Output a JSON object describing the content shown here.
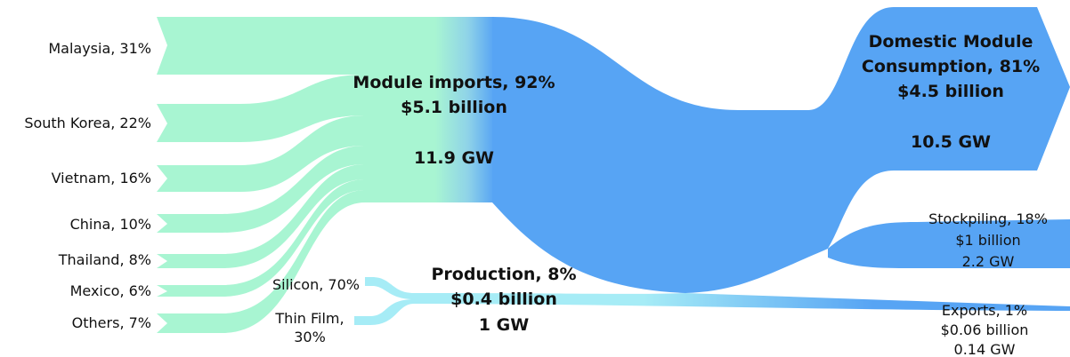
{
  "chart_data": {
    "type": "sankey",
    "import_sources": [
      {
        "name": "Malaysia",
        "label": "Malaysia, 31%",
        "share": 31
      },
      {
        "name": "South Korea",
        "label": "South Korea, 22%",
        "share": 22
      },
      {
        "name": "Vietnam",
        "label": "Vietnam, 16%",
        "share": 16
      },
      {
        "name": "China",
        "label": "China, 10%",
        "share": 10
      },
      {
        "name": "Thailand",
        "label": "Thailand, 8%",
        "share": 8
      },
      {
        "name": "Mexico",
        "label": "Mexico, 6%",
        "share": 6
      },
      {
        "name": "Others",
        "label": "Others, 7%",
        "share": 7
      }
    ],
    "production_sources": [
      {
        "name": "Silicon",
        "label": "Silicon, 70%",
        "share": 70
      },
      {
        "name": "Thin Film",
        "label_line1": "Thin Film,",
        "label_line2": "30%",
        "share": 30
      }
    ],
    "module_imports": {
      "line1": "Module imports, 92%",
      "line2": "$5.1 billion",
      "line3": "11.9 GW",
      "share": 92,
      "value_billion": 5.1,
      "capacity_gw": 11.9
    },
    "production": {
      "line1": "Production, 8%",
      "line2": "$0.4 billion",
      "line3": "1 GW",
      "share": 8,
      "value_billion": 0.4,
      "capacity_gw": 1
    },
    "destinations": [
      {
        "name": "Domestic Module Consumption",
        "line1": "Domestic Module",
        "line2": "Consumption, 81%",
        "line3": "$4.5 billion",
        "line4": "10.5 GW",
        "share": 81,
        "value_billion": 4.5,
        "capacity_gw": 10.5
      },
      {
        "name": "Stockpiling",
        "line1": "Stockpiling, 18%",
        "line2": "$1 billion",
        "line3": "2.2 GW",
        "share": 18,
        "value_billion": 1,
        "capacity_gw": 2.2
      },
      {
        "name": "Exports",
        "line1": "Exports, 1%",
        "line2": "$0.06 billion",
        "line3": "0.14 GW",
        "share": 1,
        "value_billion": 0.06,
        "capacity_gw": 0.14
      }
    ]
  },
  "colors": {
    "imports": "#a8f5d2",
    "flow": "#57a4f4",
    "production_inputs": "#a6ecf6"
  }
}
